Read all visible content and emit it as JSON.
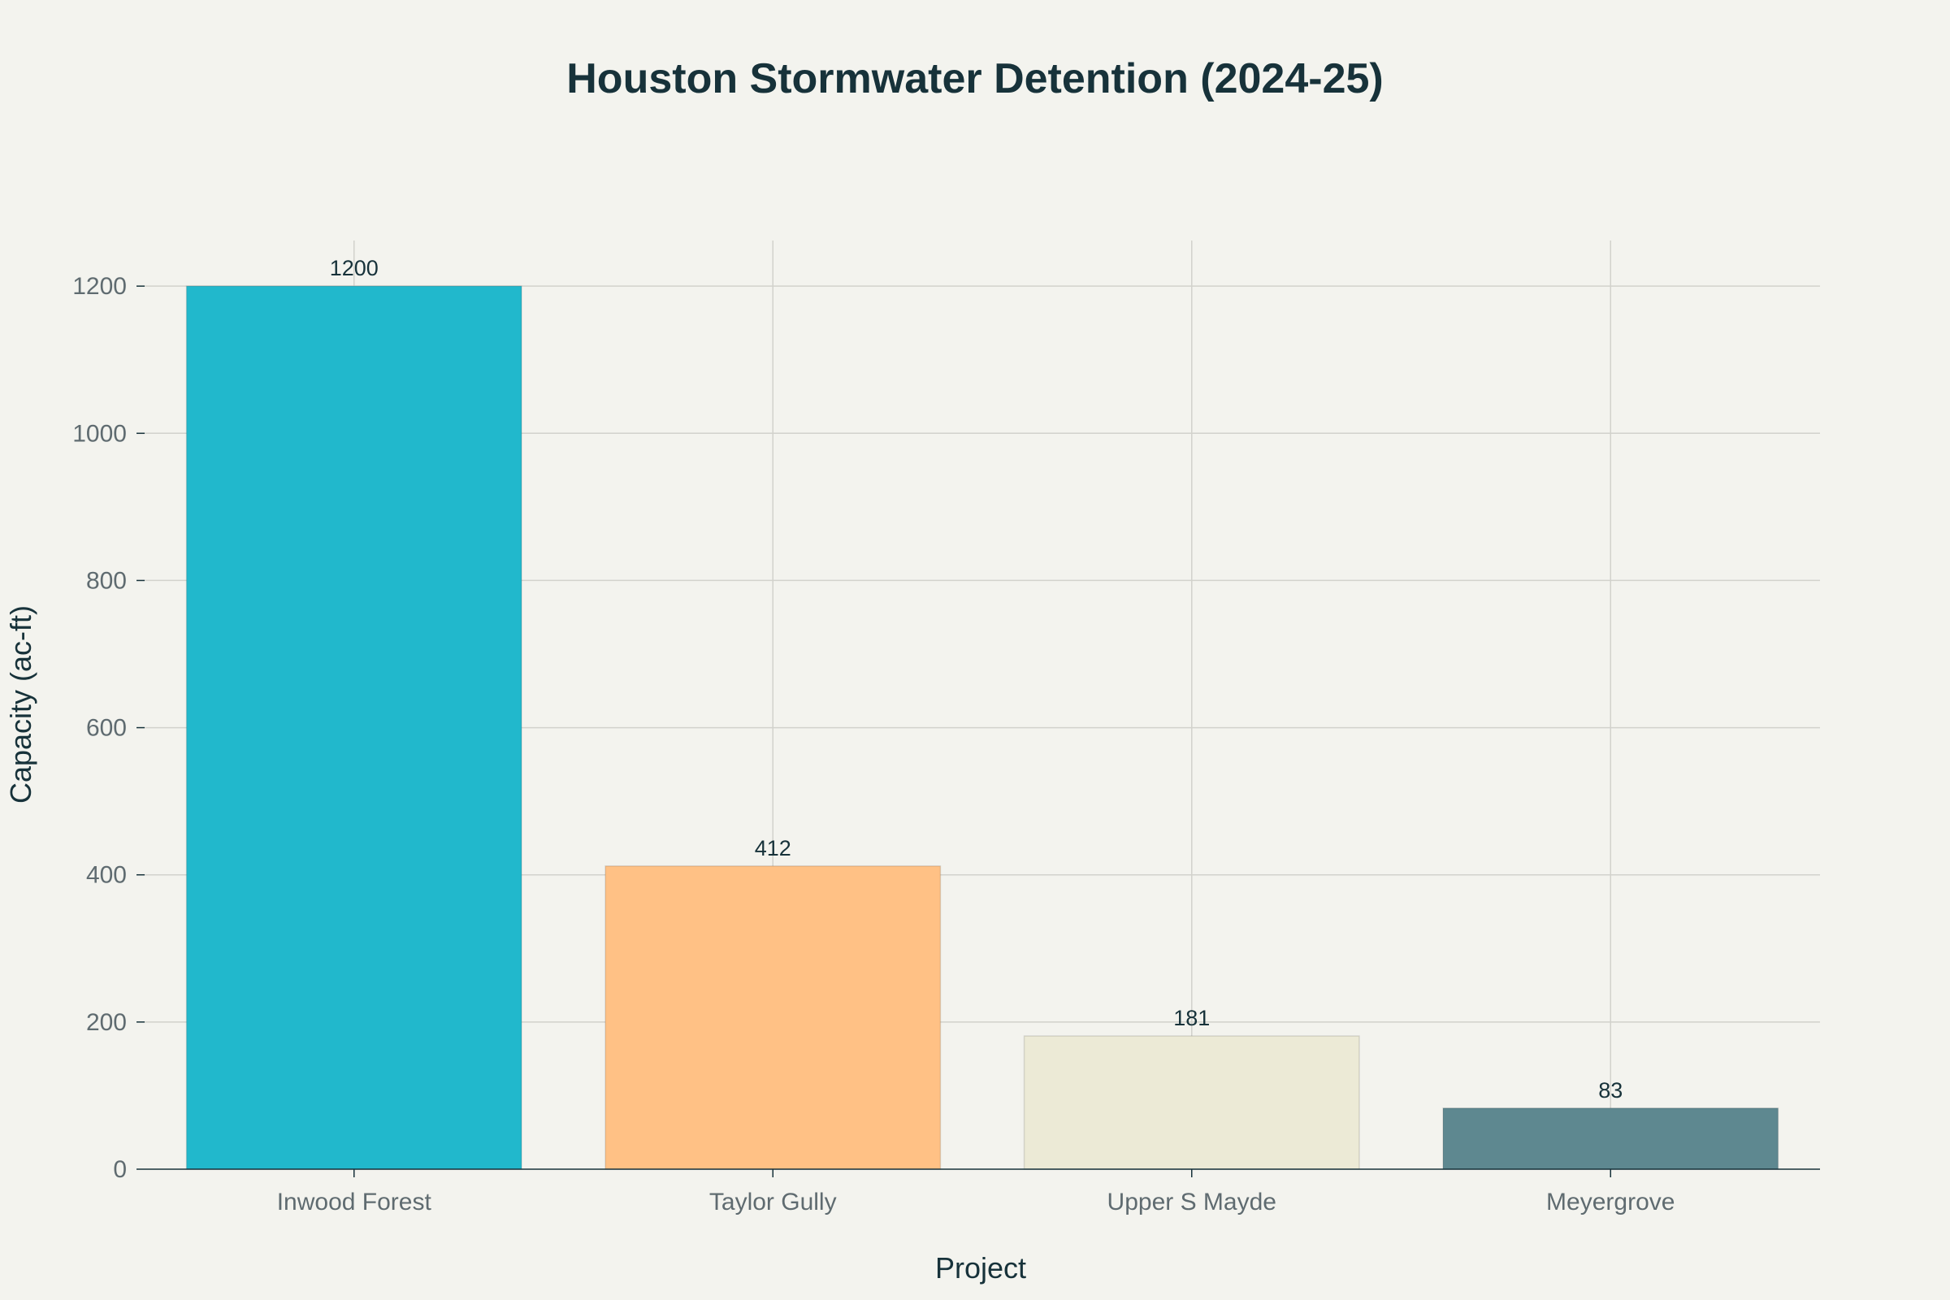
{
  "chart_data": {
    "type": "bar",
    "title": "Houston Stormwater Detention (2024-25)",
    "xlabel": "Project",
    "ylabel": "Capacity (ac-ft)",
    "categories": [
      "Inwood Forest",
      "Taylor Gully",
      "Upper S Mayde",
      "Meyergrove"
    ],
    "values": [
      1200,
      412,
      181,
      83
    ],
    "data_labels": [
      "1200",
      "412",
      "181",
      "83"
    ],
    "colors": [
      "#21b8cc",
      "#ffc185",
      "#ecead6",
      "#5e8890"
    ],
    "ylim": [
      0,
      1262
    ],
    "yticks": [
      0,
      200,
      400,
      600,
      800,
      1000,
      1200
    ],
    "grid": true,
    "legend": "none"
  }
}
